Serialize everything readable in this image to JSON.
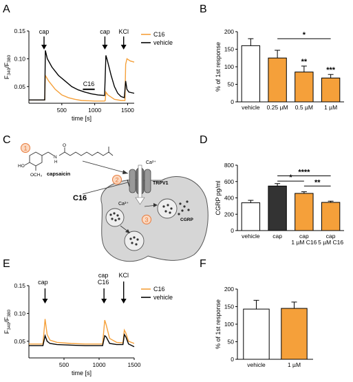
{
  "panels": {
    "A": {
      "letter": "A"
    },
    "B": {
      "letter": "B"
    },
    "C": {
      "letter": "C"
    },
    "D": {
      "letter": "D"
    },
    "E": {
      "letter": "E"
    },
    "F": {
      "letter": "F"
    }
  },
  "chart_data": [
    {
      "panel": "A",
      "type": "line",
      "xlabel": "time [s]",
      "ylabel": "F340/F380",
      "xlim": [
        0,
        1600
      ],
      "ylim": [
        0.02,
        0.15
      ],
      "xticks": [
        "500",
        "1000",
        "1500"
      ],
      "yticks": [
        "0.05",
        "0.10",
        "0.15"
      ],
      "annotations": [
        "cap",
        "cap",
        "KCl",
        "C16"
      ],
      "legend": [
        "C16",
        "vehicle"
      ],
      "legend_position": "top-right",
      "series": [
        {
          "name": "C16",
          "color": "#f5a03a",
          "points": [
            [
              0,
              0.026
            ],
            [
              240,
              0.026
            ],
            [
              250,
              0.07
            ],
            [
              300,
              0.06
            ],
            [
              400,
              0.045
            ],
            [
              500,
              0.035
            ],
            [
              600,
              0.03
            ],
            [
              700,
              0.027
            ],
            [
              800,
              0.025
            ],
            [
              1000,
              0.024
            ],
            [
              1150,
              0.024
            ],
            [
              1160,
              0.025
            ],
            [
              1170,
              0.04
            ],
            [
              1200,
              0.035
            ],
            [
              1300,
              0.027
            ],
            [
              1400,
              0.025
            ],
            [
              1460,
              0.025
            ],
            [
              1470,
              0.09
            ],
            [
              1490,
              0.1
            ],
            [
              1540,
              0.096
            ],
            [
              1600,
              0.094
            ]
          ]
        },
        {
          "name": "vehicle",
          "color": "#000000",
          "points": [
            [
              0,
              0.026
            ],
            [
              240,
              0.026
            ],
            [
              250,
              0.115
            ],
            [
              280,
              0.1
            ],
            [
              350,
              0.085
            ],
            [
              450,
              0.07
            ],
            [
              550,
              0.06
            ],
            [
              650,
              0.05
            ],
            [
              750,
              0.044
            ],
            [
              850,
              0.04
            ],
            [
              950,
              0.037
            ],
            [
              1050,
              0.035
            ],
            [
              1150,
              0.034
            ],
            [
              1170,
              0.106
            ],
            [
              1190,
              0.098
            ],
            [
              1250,
              0.07
            ],
            [
              1300,
              0.05
            ],
            [
              1350,
              0.038
            ],
            [
              1400,
              0.032
            ],
            [
              1450,
              0.03
            ],
            [
              1470,
              0.06
            ],
            [
              1490,
              0.045
            ],
            [
              1520,
              0.04
            ],
            [
              1600,
              0.038
            ]
          ]
        }
      ]
    },
    {
      "panel": "B",
      "type": "bar",
      "ylabel": "% of 1st response",
      "ylim": [
        0,
        200
      ],
      "yticks": [
        "0",
        "50",
        "100",
        "150",
        "200"
      ],
      "categories": [
        "vehicle",
        "0.25 µM",
        "0.5 µM",
        "1 µM"
      ],
      "values": [
        160,
        125,
        85,
        68
      ],
      "errors": [
        20,
        22,
        17,
        10
      ],
      "colors": [
        "#ffffff",
        "#f5a03a",
        "#f5a03a",
        "#f5a03a"
      ],
      "significance": [
        {
          "label": "*",
          "from": 1,
          "to": 3,
          "y": 180
        },
        {
          "label": "**",
          "bar": 2
        },
        {
          "label": "***",
          "bar": 3
        }
      ]
    },
    {
      "panel": "D",
      "type": "bar",
      "ylabel": "CGRP pg/ml",
      "ylim": [
        0,
        800
      ],
      "yticks": [
        "0",
        "200",
        "400",
        "600",
        "800"
      ],
      "categories": [
        [
          "vehicle"
        ],
        [
          "cap"
        ],
        [
          "cap",
          "1 µM C16"
        ],
        [
          "cap",
          "5 µM C16"
        ]
      ],
      "values": [
        340,
        545,
        455,
        345
      ],
      "errors": [
        30,
        30,
        20,
        15
      ],
      "colors": [
        "#ffffff",
        "#333333",
        "#f5a03a",
        "#f5a03a"
      ],
      "significance": [
        {
          "label": "****",
          "from": 1,
          "to": 3,
          "y": 670
        },
        {
          "label": "*",
          "from": 1,
          "to": 2,
          "y": 605
        },
        {
          "label": "**",
          "from": 2,
          "to": 3,
          "y": 545
        }
      ]
    },
    {
      "panel": "E",
      "type": "line",
      "xlabel": "time [s]",
      "ylabel": "F340/F380",
      "xlim": [
        0,
        1500
      ],
      "ylim": [
        0.02,
        0.15
      ],
      "xticks": [
        "500",
        "1000",
        "1500"
      ],
      "yticks": [
        "0.05",
        "0.10",
        "0.15"
      ],
      "annotations": [
        "cap",
        "cap\nC16",
        "KCl"
      ],
      "legend": [
        "C16",
        "vehicle"
      ],
      "legend_position": "top-right",
      "series": [
        {
          "name": "C16",
          "color": "#f5a03a",
          "points": [
            [
              0,
              0.045
            ],
            [
              200,
              0.045
            ],
            [
              230,
              0.09
            ],
            [
              260,
              0.062
            ],
            [
              300,
              0.052
            ],
            [
              400,
              0.048
            ],
            [
              600,
              0.046
            ],
            [
              800,
              0.045
            ],
            [
              1050,
              0.045
            ],
            [
              1080,
              0.088
            ],
            [
              1100,
              0.08
            ],
            [
              1150,
              0.055
            ],
            [
              1250,
              0.048
            ],
            [
              1340,
              0.047
            ],
            [
              1360,
              0.07
            ],
            [
              1380,
              0.065
            ],
            [
              1420,
              0.05
            ],
            [
              1500,
              0.046
            ]
          ]
        },
        {
          "name": "vehicle",
          "color": "#000000",
          "points": [
            [
              0,
              0.042
            ],
            [
              200,
              0.042
            ],
            [
              230,
              0.06
            ],
            [
              260,
              0.05
            ],
            [
              300,
              0.046
            ],
            [
              400,
              0.044
            ],
            [
              600,
              0.043
            ],
            [
              800,
              0.042
            ],
            [
              1050,
              0.042
            ],
            [
              1080,
              0.06
            ],
            [
              1100,
              0.058
            ],
            [
              1150,
              0.046
            ],
            [
              1250,
              0.044
            ],
            [
              1340,
              0.044
            ],
            [
              1360,
              0.062
            ],
            [
              1380,
              0.058
            ],
            [
              1420,
              0.045
            ],
            [
              1500,
              0.04
            ]
          ]
        }
      ]
    },
    {
      "panel": "F",
      "type": "bar",
      "ylabel": "% of 1st response",
      "ylim": [
        0,
        200
      ],
      "yticks": [
        "0",
        "50",
        "100",
        "150",
        "200"
      ],
      "categories": [
        "vehicle",
        "1 µM"
      ],
      "values": [
        143,
        145
      ],
      "errors": [
        25,
        18
      ],
      "colors": [
        "#ffffff",
        "#f5a03a"
      ]
    }
  ],
  "diagram_C": {
    "labels": {
      "step1": "1",
      "step2": "2",
      "step3": "3",
      "capsaicin": "capsaicin",
      "trpv1": "TRPV1",
      "ca_top": "Ca²⁺",
      "ca_bottom": "Ca²⁺",
      "c16": "C16",
      "cgrp": "CGRP",
      "ho": "HO",
      "och3": "OCH₃",
      "n": "N",
      "o": "O",
      "h": "H"
    }
  }
}
